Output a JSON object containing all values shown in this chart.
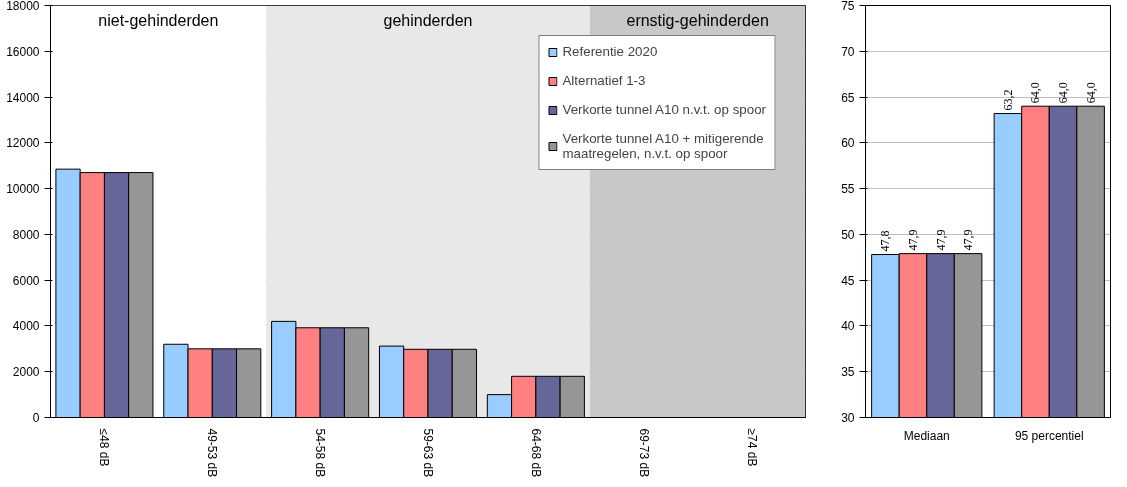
{
  "chart_data": [
    {
      "type": "bar",
      "categories": [
        "≤48 dB",
        "49-53 dB",
        "54-58 dB",
        "59-63 dB",
        "64-68 dB",
        "69-73 dB",
        "≥74 dB"
      ],
      "series": [
        {
          "name": "Referentie 2020",
          "color": "#99ccff",
          "values": [
            10850,
            3200,
            4200,
            3120,
            1000,
            null,
            null
          ]
        },
        {
          "name": "Alternatief 1-3",
          "color": "#ff8080",
          "values": [
            10700,
            3000,
            3920,
            2980,
            1800,
            null,
            null
          ]
        },
        {
          "name": "Verkorte tunnel A10 n.v.t. op spoor",
          "color": "#666699",
          "values": [
            10700,
            3000,
            3920,
            2980,
            1800,
            null,
            null
          ]
        },
        {
          "name": "Verkorte tunnel A10 + mitigerende maatregelen, n.v.t. op spoor",
          "color": "#969696",
          "values": [
            10700,
            3000,
            3920,
            2980,
            1800,
            null,
            null
          ]
        }
      ],
      "ylim": [
        0,
        18000
      ],
      "yticks": [
        0,
        2000,
        4000,
        6000,
        8000,
        10000,
        12000,
        14000,
        16000,
        18000
      ],
      "bands": [
        {
          "axis": "x",
          "from": "≤48 dB",
          "to": "49-53 dB",
          "label": "niet-gehinderden",
          "color": "#ffffff"
        },
        {
          "axis": "x",
          "from": "54-58 dB",
          "to": "64-68 dB",
          "label": "gehinderden",
          "color": "#e8e8e8"
        },
        {
          "axis": "x",
          "from": "69-73 dB",
          "to": "≥74 dB",
          "label": "ernstig-gehinderden",
          "color": "#c8c8c8"
        }
      ],
      "grid": "y",
      "legend": "top right"
    },
    {
      "type": "bar",
      "categories": [
        "Mediaan",
        "95 percentiel"
      ],
      "series": [
        {
          "color": "#99ccff",
          "values": [
            47.8,
            63.2
          ],
          "value_labels": [
            "47,8",
            "63,2"
          ]
        },
        {
          "color": "#ff8080",
          "values": [
            47.9,
            64.0
          ],
          "value_labels": [
            "47,9",
            "64,0"
          ]
        },
        {
          "color": "#666699",
          "values": [
            47.9,
            64.0
          ],
          "value_labels": [
            "47,9",
            "64,0"
          ]
        },
        {
          "color": "#969696",
          "values": [
            47.9,
            64.0
          ],
          "value_labels": [
            "47,9",
            "64,0"
          ]
        }
      ],
      "ylim": [
        30,
        75
      ],
      "yticks": [
        30,
        35,
        40,
        45,
        50,
        55,
        60,
        65,
        70,
        75
      ],
      "grid": "y"
    }
  ]
}
